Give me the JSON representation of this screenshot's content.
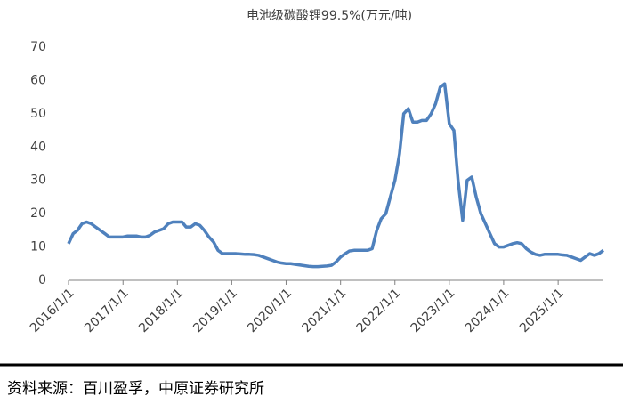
{
  "chart_data": {
    "type": "line",
    "title": "电池级碳酸锂99.5%(万元/吨)",
    "source": "资料来源：百川盈孚，中原证券研究所",
    "x": [
      "2016/1/1",
      "2016/2/1",
      "2016/3/1",
      "2016/4/1",
      "2016/5/1",
      "2016/6/1",
      "2016/7/1",
      "2016/8/1",
      "2016/9/1",
      "2016/10/1",
      "2016/11/1",
      "2016/12/1",
      "2017/1/1",
      "2017/2/1",
      "2017/3/1",
      "2017/4/1",
      "2017/5/1",
      "2017/6/1",
      "2017/7/1",
      "2017/8/1",
      "2017/9/1",
      "2017/10/1",
      "2017/11/1",
      "2017/12/1",
      "2018/1/1",
      "2018/2/1",
      "2018/3/1",
      "2018/4/1",
      "2018/5/1",
      "2018/6/1",
      "2018/7/1",
      "2018/8/1",
      "2018/9/1",
      "2018/10/1",
      "2018/11/1",
      "2018/12/1",
      "2019/1/1",
      "2019/2/1",
      "2019/3/1",
      "2019/4/1",
      "2019/5/1",
      "2019/6/1",
      "2019/7/1",
      "2019/8/1",
      "2019/9/1",
      "2019/10/1",
      "2019/11/1",
      "2019/12/1",
      "2020/1/1",
      "2020/2/1",
      "2020/3/1",
      "2020/4/1",
      "2020/5/1",
      "2020/6/1",
      "2020/7/1",
      "2020/8/1",
      "2020/9/1",
      "2020/10/1",
      "2020/11/1",
      "2020/12/1",
      "2021/1/1",
      "2021/2/1",
      "2021/3/1",
      "2021/4/1",
      "2021/5/1",
      "2021/6/1",
      "2021/7/1",
      "2021/8/1",
      "2021/9/1",
      "2021/10/1",
      "2021/11/1",
      "2021/12/1",
      "2022/1/1",
      "2022/2/1",
      "2022/3/1",
      "2022/4/1",
      "2022/5/1",
      "2022/6/1",
      "2022/7/1",
      "2022/8/1",
      "2022/9/1",
      "2022/10/1",
      "2022/11/1",
      "2022/12/1",
      "2023/1/1",
      "2023/2/1",
      "2023/3/1",
      "2023/4/1",
      "2023/5/1",
      "2023/6/1",
      "2023/7/1",
      "2023/8/1",
      "2023/9/1",
      "2023/10/1",
      "2023/11/1",
      "2023/12/1",
      "2024/1/1",
      "2024/2/1",
      "2024/3/1",
      "2024/4/1",
      "2024/5/1",
      "2024/6/1",
      "2024/7/1",
      "2024/8/1",
      "2024/9/1",
      "2024/10/1",
      "2024/11/1",
      "2024/12/1",
      "2025/1/1",
      "2025/2/1",
      "2025/3/1",
      "2025/4/1",
      "2025/5/1",
      "2025/6/1",
      "2025/7/1",
      "2025/8/1",
      "2025/9/1",
      "2025/10/1",
      "2025/11/1"
    ],
    "values": [
      11,
      14,
      15,
      17,
      17.5,
      17,
      16,
      15,
      14,
      13,
      13,
      13,
      13,
      13.3,
      13.3,
      13.3,
      13,
      13,
      13.5,
      14.5,
      15,
      15.5,
      17,
      17.5,
      17.5,
      17.5,
      16,
      16,
      17,
      16.5,
      15,
      13,
      11.5,
      9,
      8,
      8,
      8,
      8,
      7.9,
      7.8,
      7.8,
      7.7,
      7.5,
      7,
      6.5,
      6,
      5.5,
      5.2,
      5,
      5,
      4.8,
      4.6,
      4.4,
      4.2,
      4.1,
      4.1,
      4.2,
      4.3,
      4.5,
      5.5,
      7,
      8,
      8.8,
      9,
      9,
      9,
      9,
      9.5,
      15,
      18.5,
      20,
      25,
      30,
      38,
      50,
      51.5,
      47.5,
      47.5,
      48,
      48,
      50,
      53,
      58,
      59,
      47,
      45,
      30,
      18,
      30,
      31,
      25,
      20,
      17,
      14,
      11,
      10,
      10,
      10.5,
      11,
      11.3,
      11,
      9.5,
      8.5,
      7.8,
      7.5,
      7.8,
      7.8,
      7.8,
      7.8,
      7.6,
      7.5,
      7,
      6.5,
      6,
      7,
      8,
      7.5,
      8,
      9
    ],
    "color": "#4f81bd",
    "xlim": [
      "2016/1/1",
      "2025/11/1"
    ],
    "xticks": [
      "2016/1/1",
      "2017/1/1",
      "2018/1/1",
      "2019/1/1",
      "2020/1/1",
      "2021/1/1",
      "2022/1/1",
      "2023/1/1",
      "2024/1/1",
      "2025/1/1"
    ],
    "ylim": [
      0,
      70
    ],
    "yticks": [
      0,
      10,
      20,
      30,
      40,
      50,
      60,
      70
    ],
    "grid": false
  }
}
